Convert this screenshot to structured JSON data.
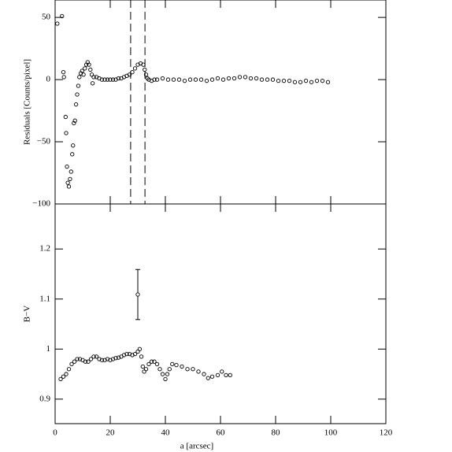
{
  "chart_data": [
    {
      "type": "scatter",
      "ylabel": "Residuals [Counts/pixel]",
      "x": [
        0.8,
        2.5,
        3,
        3.2,
        3.8,
        4,
        4.3,
        4.6,
        5,
        5.4,
        5.8,
        6.2,
        6.5,
        6.8,
        7.2,
        7.6,
        8,
        8.4,
        8.8,
        9.3,
        9.8,
        10.3,
        10.8,
        11.3,
        11.8,
        12.3,
        12.8,
        13.3,
        13.6,
        14,
        15,
        16,
        17,
        18,
        19,
        20,
        21,
        22,
        23,
        24,
        25,
        26,
        27,
        28,
        29,
        30,
        31,
        32,
        32.5,
        33,
        33.5,
        34,
        35,
        36,
        37,
        39,
        41,
        43,
        45,
        47,
        49,
        51,
        53,
        55,
        57,
        59,
        61,
        63,
        65,
        67,
        69,
        71,
        73,
        75,
        77,
        79,
        81,
        83,
        85,
        87,
        89,
        91,
        93,
        95,
        97,
        99
      ],
      "values": [
        45,
        51,
        6,
        2,
        -30,
        -43,
        -70,
        -83,
        -86,
        -80,
        -74,
        -60,
        -53,
        -35,
        -33,
        -20,
        -12,
        -5,
        2,
        5,
        7,
        4,
        9,
        12,
        14,
        12,
        8,
        4,
        -3,
        2,
        2,
        1,
        0,
        0,
        0,
        0,
        0,
        0,
        1,
        1,
        2,
        3,
        4,
        6,
        9,
        12,
        13,
        12,
        8,
        4,
        1,
        0,
        -1,
        0,
        0,
        1,
        0,
        0,
        0,
        -1,
        0,
        0,
        0,
        -1,
        0,
        1,
        0,
        1,
        1,
        2,
        2,
        1,
        1,
        0,
        0,
        0,
        -1,
        -1,
        -1,
        -2,
        -2,
        -1,
        -2,
        -1,
        -1,
        -2
      ],
      "xlim": [
        0,
        120
      ],
      "xticks": [
        0,
        20,
        40,
        60,
        80,
        100,
        120
      ],
      "ylim": [
        -100,
        64
      ],
      "yticks": [
        {
          "value": -100,
          "label": "−100"
        },
        {
          "value": -50,
          "label": "−50"
        },
        0,
        50
      ],
      "vlines": [
        27.4,
        32.6
      ]
    },
    {
      "type": "scatter",
      "ylabel": "B−V",
      "xlabel": "a [arcsec]",
      "x": [
        2,
        3,
        4,
        5,
        6,
        7,
        8,
        9,
        10,
        11,
        12,
        13,
        14,
        15,
        16,
        17,
        18,
        19,
        20,
        21,
        22,
        23,
        24,
        25,
        26,
        27,
        28,
        29,
        30,
        30.7,
        31.3,
        31.8,
        32.3,
        33,
        34,
        35,
        36,
        37,
        38,
        39,
        40,
        40.7,
        41.5,
        42.5,
        44,
        46,
        48,
        50,
        52,
        54,
        55.5,
        57,
        59,
        60.5,
        62,
        63.5
      ],
      "values": [
        0.94,
        0.945,
        0.95,
        0.96,
        0.97,
        0.975,
        0.98,
        0.98,
        0.978,
        0.975,
        0.975,
        0.98,
        0.985,
        0.985,
        0.98,
        0.978,
        0.978,
        0.98,
        0.978,
        0.98,
        0.982,
        0.983,
        0.985,
        0.988,
        0.99,
        0.99,
        0.988,
        0.99,
        0.995,
        1.0,
        0.985,
        0.965,
        0.955,
        0.96,
        0.97,
        0.975,
        0.975,
        0.97,
        0.96,
        0.95,
        0.94,
        0.95,
        0.96,
        0.97,
        0.968,
        0.965,
        0.96,
        0.96,
        0.955,
        0.95,
        0.942,
        0.945,
        0.948,
        0.955,
        0.948,
        0.948
      ],
      "xlim": [
        0,
        120
      ],
      "xticks": [
        0,
        20,
        40,
        60,
        80,
        100,
        120
      ],
      "ylim": [
        0.851,
        1.29
      ],
      "yticks": [
        0.9,
        1,
        1.1,
        1.2
      ],
      "errorbar": {
        "x": 30,
        "value": 1.109,
        "error": 0.05
      }
    }
  ]
}
